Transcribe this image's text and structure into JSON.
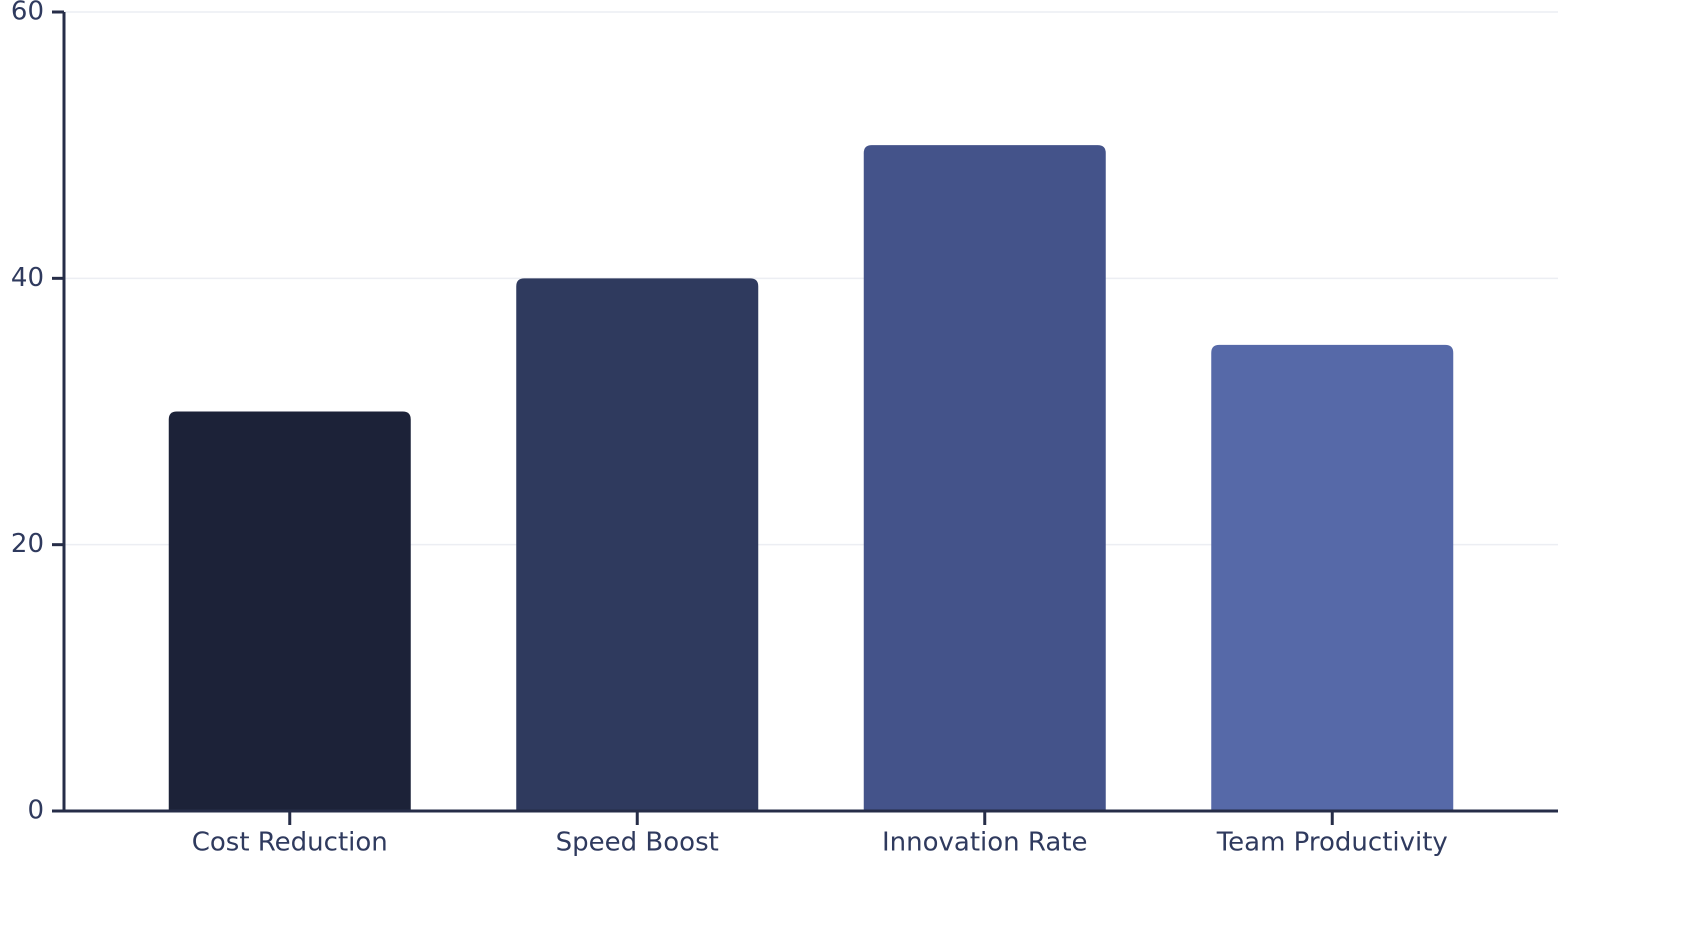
{
  "chart_data": {
    "type": "bar",
    "categories": [
      "Cost Reduction",
      "Speed Boost",
      "Innovation Rate",
      "Team Productivity"
    ],
    "values": [
      30,
      40,
      50,
      35
    ],
    "colors": [
      "#1c2238",
      "#2f3a5e",
      "#44538a",
      "#5669a8"
    ],
    "ylim": [
      0,
      60
    ],
    "yticks": [
      0,
      20,
      40,
      60
    ],
    "grid": true
  }
}
